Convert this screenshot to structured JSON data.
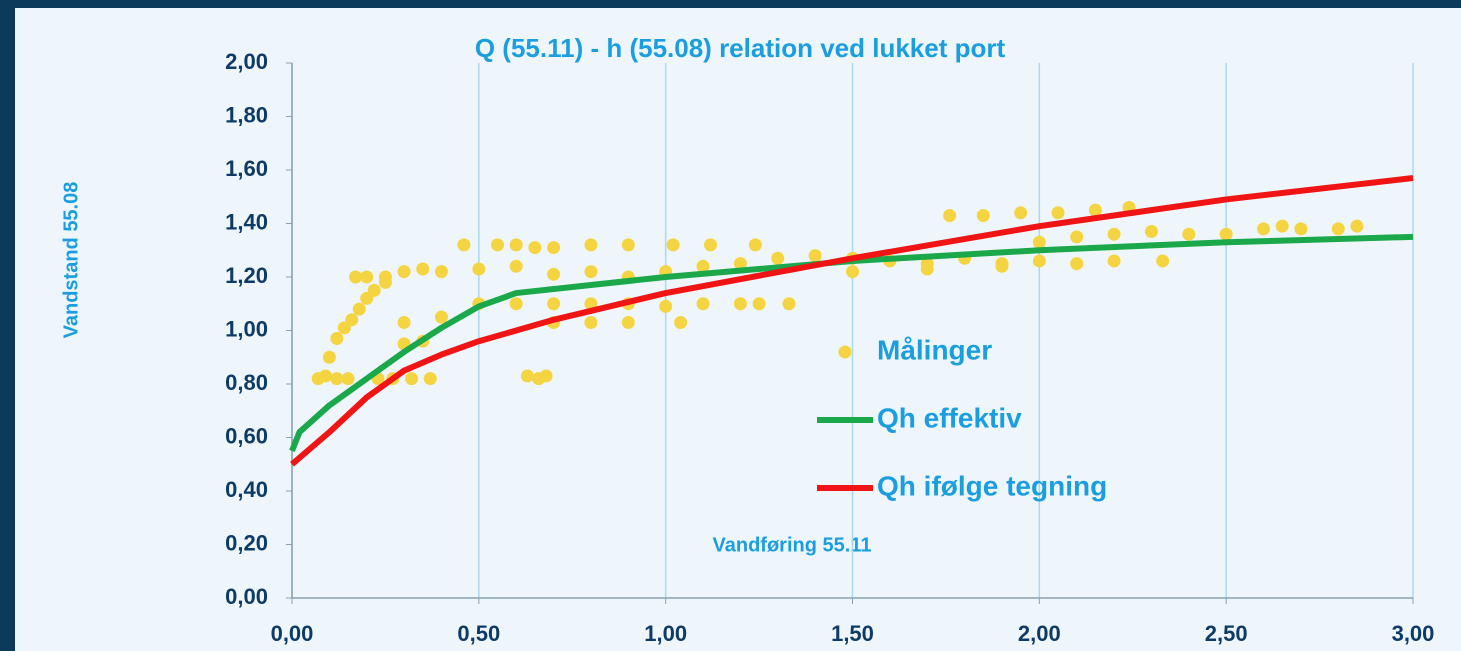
{
  "chart_data": {
    "type": "scatter",
    "title": "Q (55.11) - h (55.08) relation ved lukket port",
    "x_label": "Vandføring 55.11",
    "y_label": "Vandstand 55.08",
    "xlim": [
      0,
      3
    ],
    "ylim": [
      0,
      2
    ],
    "xticks": [
      {
        "value": 0,
        "label": "0,00"
      },
      {
        "value": 0.5,
        "label": "0,50"
      },
      {
        "value": 1,
        "label": "1,00"
      },
      {
        "value": 1.5,
        "label": "1,50"
      },
      {
        "value": 2,
        "label": "2,00"
      },
      {
        "value": 2.5,
        "label": "2,50"
      },
      {
        "value": 3,
        "label": "3,00"
      }
    ],
    "yticks": [
      {
        "value": 0,
        "label": "0,00"
      },
      {
        "value": 0.2,
        "label": "0,20"
      },
      {
        "value": 0.4,
        "label": "0,40"
      },
      {
        "value": 0.6,
        "label": "0,60"
      },
      {
        "value": 0.8,
        "label": "0,80"
      },
      {
        "value": 1,
        "label": "1,00"
      },
      {
        "value": 1.2,
        "label": "1,20"
      },
      {
        "value": 1.4,
        "label": "1,40"
      },
      {
        "value": 1.6,
        "label": "1,60"
      },
      {
        "value": 1.8,
        "label": "1,80"
      },
      {
        "value": 2,
        "label": "2,00"
      }
    ],
    "grid": "x",
    "legend": "center-right",
    "series": [
      {
        "name": "Målinger",
        "color": "#f5d442",
        "marker": "dot",
        "x": [
          0.07,
          0.09,
          0.12,
          0.15,
          0.23,
          0.27,
          0.32,
          0.37,
          0.1,
          0.12,
          0.14,
          0.16,
          0.18,
          0.2,
          0.22,
          0.25,
          0.17,
          0.2,
          0.25,
          0.3,
          0.35,
          0.4,
          0.5,
          0.6,
          0.7,
          0.8,
          0.9,
          1.0,
          1.1,
          1.2,
          1.3,
          0.5,
          0.6,
          0.7,
          0.8,
          0.9,
          1.0,
          1.1,
          1.2,
          1.25,
          1.33,
          0.3,
          0.4,
          0.7,
          0.8,
          0.9,
          1.04,
          0.46,
          0.55,
          0.6,
          0.65,
          0.7,
          0.8,
          0.9,
          1.02,
          1.12,
          1.24,
          0.63,
          0.66,
          0.68,
          1.4,
          1.5,
          1.6,
          1.7,
          1.8,
          1.9,
          2.0,
          2.1,
          2.2,
          2.33,
          1.5,
          1.7,
          1.9,
          1.76,
          1.85,
          1.95,
          2.05,
          2.15,
          2.24,
          2.0,
          2.1,
          2.2,
          2.3,
          2.4,
          2.5,
          2.6,
          2.7,
          2.8,
          2.85,
          2.65,
          0.3,
          0.35
        ],
        "values": [
          0.82,
          0.83,
          0.82,
          0.82,
          0.82,
          0.82,
          0.82,
          0.82,
          0.9,
          0.97,
          1.01,
          1.04,
          1.08,
          1.12,
          1.15,
          1.18,
          1.2,
          1.2,
          1.2,
          1.22,
          1.23,
          1.22,
          1.23,
          1.24,
          1.21,
          1.22,
          1.2,
          1.22,
          1.24,
          1.25,
          1.27,
          1.1,
          1.1,
          1.1,
          1.1,
          1.1,
          1.09,
          1.1,
          1.1,
          1.1,
          1.1,
          1.03,
          1.05,
          1.03,
          1.03,
          1.03,
          1.03,
          1.32,
          1.32,
          1.32,
          1.31,
          1.31,
          1.32,
          1.32,
          1.32,
          1.32,
          1.32,
          0.83,
          0.82,
          0.83,
          1.28,
          1.27,
          1.26,
          1.25,
          1.27,
          1.25,
          1.26,
          1.25,
          1.26,
          1.26,
          1.22,
          1.23,
          1.24,
          1.43,
          1.43,
          1.44,
          1.44,
          1.45,
          1.46,
          1.33,
          1.35,
          1.36,
          1.37,
          1.36,
          1.36,
          1.38,
          1.38,
          1.38,
          1.39,
          1.39,
          0.95,
          0.96
        ]
      },
      {
        "name": "Qh effektiv",
        "color": "#1aa84a",
        "marker": "line",
        "x": [
          0,
          0.02,
          0.1,
          0.2,
          0.3,
          0.4,
          0.5,
          0.6,
          0.8,
          1.0,
          1.5,
          2.0,
          2.5,
          3.0
        ],
        "values": [
          0.55,
          0.62,
          0.72,
          0.82,
          0.92,
          1.01,
          1.09,
          1.14,
          1.17,
          1.2,
          1.26,
          1.3,
          1.33,
          1.35
        ]
      },
      {
        "name": "Qh ifølge tegning",
        "color": "#f01414",
        "marker": "line",
        "x": [
          0,
          0.1,
          0.2,
          0.3,
          0.4,
          0.5,
          0.7,
          1.0,
          1.5,
          2.0,
          2.5,
          3.0
        ],
        "values": [
          0.5,
          0.62,
          0.75,
          0.85,
          0.91,
          0.96,
          1.04,
          1.14,
          1.27,
          1.39,
          1.49,
          1.57
        ]
      }
    ]
  }
}
